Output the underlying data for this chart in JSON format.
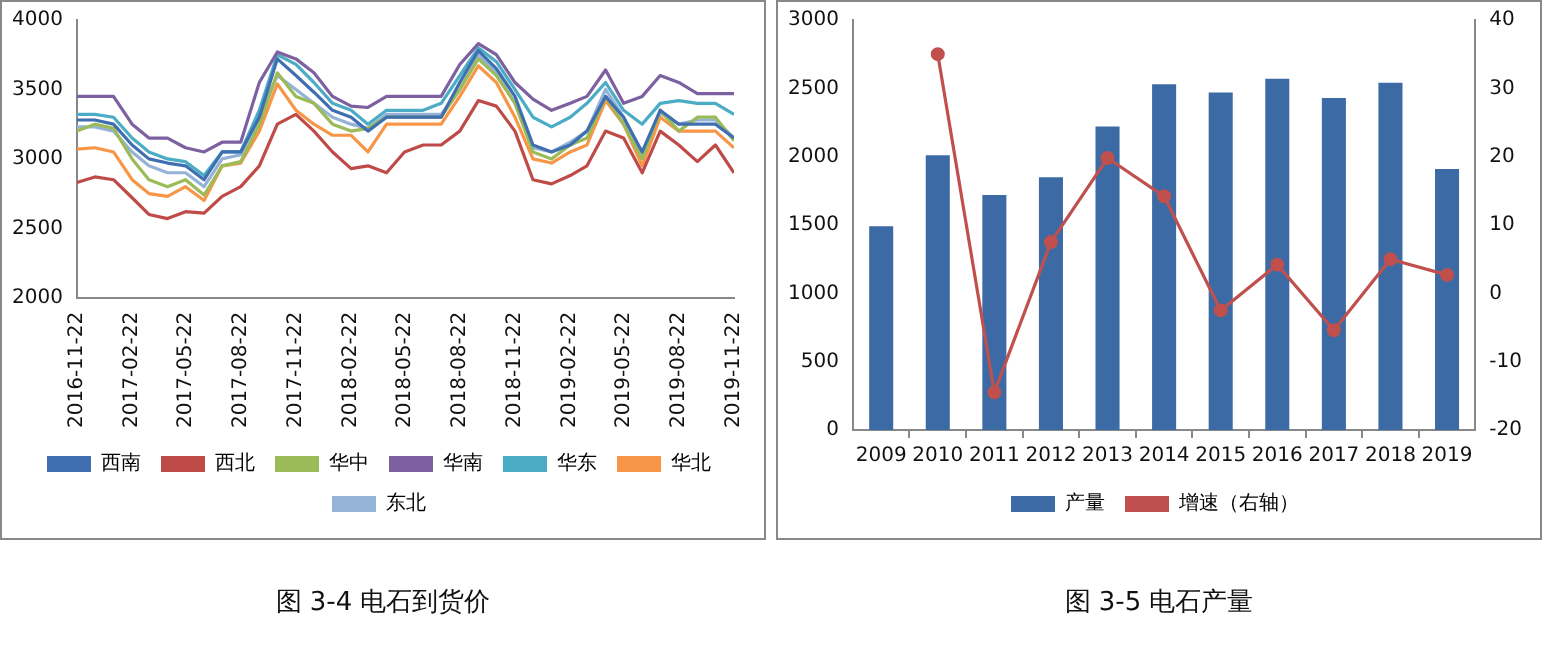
{
  "chart_data": [
    {
      "type": "line",
      "title": "图 3-4 电石到货价",
      "x": [
        "2016-11-22",
        "2016-12-22",
        "2017-01-22",
        "2017-02-22",
        "2017-03-22",
        "2017-04-22",
        "2017-05-22",
        "2017-06-22",
        "2017-07-22",
        "2017-08-22",
        "2017-09-22",
        "2017-10-22",
        "2017-11-22",
        "2017-12-22",
        "2018-01-22",
        "2018-02-22",
        "2018-03-22",
        "2018-04-22",
        "2018-05-22",
        "2018-06-22",
        "2018-07-22",
        "2018-08-22",
        "2018-09-22",
        "2018-10-22",
        "2018-11-22",
        "2018-12-22",
        "2019-01-22",
        "2019-02-22",
        "2019-03-22",
        "2019-04-22",
        "2019-05-22",
        "2019-06-22",
        "2019-07-22",
        "2019-08-22",
        "2019-09-22",
        "2019-10-22",
        "2019-11-22"
      ],
      "series": [
        {
          "name": "西南",
          "color": "#3f6fb0",
          "values": [
            3280,
            3280,
            3250,
            3100,
            3000,
            2970,
            2950,
            2850,
            3050,
            3050,
            3300,
            3720,
            3600,
            3480,
            3350,
            3300,
            3200,
            3300,
            3300,
            3300,
            3300,
            3550,
            3780,
            3650,
            3450,
            3100,
            3050,
            3100,
            3200,
            3450,
            3300,
            3050,
            3350,
            3250,
            3250,
            3250,
            3150
          ]
        },
        {
          "name": "西北",
          "color": "#be4b48",
          "values": [
            2830,
            2870,
            2850,
            2720,
            2600,
            2570,
            2620,
            2610,
            2730,
            2800,
            2950,
            3250,
            3320,
            3200,
            3050,
            2930,
            2950,
            2900,
            3050,
            3100,
            3100,
            3200,
            3420,
            3380,
            3200,
            2850,
            2820,
            2880,
            2950,
            3200,
            3150,
            2900,
            3200,
            3100,
            2980,
            3100,
            2900
          ]
        },
        {
          "name": "华中",
          "color": "#9bbb59",
          "values": [
            3200,
            3250,
            3220,
            3000,
            2850,
            2800,
            2850,
            2740,
            2950,
            2980,
            3250,
            3620,
            3450,
            3400,
            3250,
            3200,
            3220,
            3300,
            3300,
            3300,
            3300,
            3500,
            3720,
            3600,
            3400,
            3050,
            3000,
            3100,
            3150,
            3450,
            3250,
            3000,
            3350,
            3200,
            3300,
            3300,
            3130
          ]
        },
        {
          "name": "华南",
          "color": "#7d60a0",
          "values": [
            3450,
            3450,
            3450,
            3250,
            3150,
            3150,
            3080,
            3050,
            3120,
            3120,
            3550,
            3770,
            3720,
            3620,
            3450,
            3380,
            3370,
            3450,
            3450,
            3450,
            3450,
            3680,
            3830,
            3750,
            3550,
            3430,
            3350,
            3400,
            3450,
            3640,
            3400,
            3450,
            3600,
            3550,
            3470,
            3470,
            3470
          ]
        },
        {
          "name": "华东",
          "color": "#4bacc6",
          "values": [
            3320,
            3320,
            3300,
            3150,
            3050,
            3000,
            2980,
            2880,
            3050,
            3050,
            3350,
            3750,
            3680,
            3550,
            3400,
            3350,
            3250,
            3350,
            3350,
            3350,
            3400,
            3600,
            3800,
            3700,
            3500,
            3300,
            3230,
            3300,
            3400,
            3550,
            3350,
            3250,
            3400,
            3420,
            3400,
            3400,
            3320
          ]
        },
        {
          "name": "华北",
          "color": "#f79646",
          "values": [
            3070,
            3080,
            3050,
            2850,
            2750,
            2730,
            2800,
            2700,
            2950,
            2970,
            3200,
            3540,
            3350,
            3250,
            3170,
            3170,
            3050,
            3250,
            3250,
            3250,
            3250,
            3450,
            3670,
            3550,
            3300,
            3000,
            2970,
            3050,
            3100,
            3420,
            3250,
            2950,
            3300,
            3200,
            3200,
            3200,
            3080
          ]
        },
        {
          "name": "东北",
          "color": "#95b3d7",
          "values": [
            3230,
            3230,
            3200,
            3050,
            2950,
            2900,
            2900,
            2800,
            3000,
            3030,
            3300,
            3600,
            3500,
            3400,
            3300,
            3250,
            3220,
            3320,
            3320,
            3320,
            3320,
            3500,
            3750,
            3620,
            3400,
            3080,
            3050,
            3120,
            3200,
            3500,
            3300,
            3030,
            3330,
            3250,
            3280,
            3280,
            3150
          ]
        }
      ],
      "xlim": [
        "2016-11-22",
        "2019-11-22"
      ],
      "xticks": [
        "2016-11-22",
        "2017-02-22",
        "2017-05-22",
        "2017-08-22",
        "2017-11-22",
        "2018-02-22",
        "2018-05-22",
        "2018-08-22",
        "2018-11-22",
        "2019-02-22",
        "2019-05-22",
        "2019-08-22",
        "2019-11-22"
      ],
      "ylim": [
        2000,
        4000
      ],
      "yticks": [
        2000,
        2500,
        3000,
        3500,
        4000
      ],
      "grid": false,
      "legend": "bottom",
      "marker": "none"
    },
    {
      "type": "bar",
      "title": "图 3-5 电石产量",
      "categories": [
        "2009",
        "2010",
        "2011",
        "2012",
        "2013",
        "2014",
        "2015",
        "2016",
        "2017",
        "2018",
        "2019"
      ],
      "series": [
        {
          "name": "产量",
          "color": "#3b6aa5",
          "values": [
            1490,
            2010,
            1720,
            1850,
            2220,
            2530,
            2470,
            2570,
            2430,
            2540,
            1910
          ]
        },
        {
          "name": "增速（右轴）",
          "type": "line",
          "axis": "y2",
          "color": "#c0504d",
          "values": [
            null,
            35,
            -14.5,
            7.5,
            19.8,
            14.2,
            -2.5,
            4.2,
            -5.4,
            5,
            2.7
          ]
        }
      ],
      "ylim": [
        0,
        3000
      ],
      "yticks": [
        0,
        500,
        1000,
        1500,
        2000,
        2500,
        3000
      ],
      "y2lim": [
        -20,
        40
      ],
      "y2ticks": [
        -20,
        -10,
        0,
        10,
        20,
        30,
        40
      ],
      "grid": false,
      "legend": "bottom",
      "marker": "circle"
    }
  ]
}
